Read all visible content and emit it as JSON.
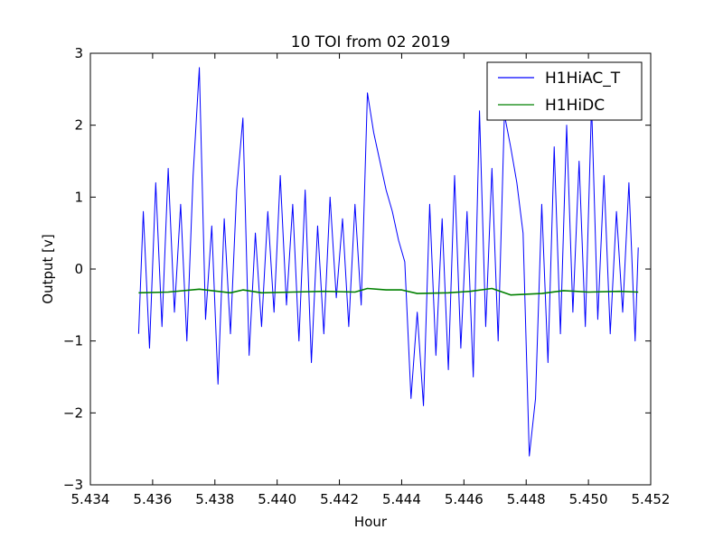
{
  "chart_data": {
    "type": "line",
    "title": "10 TOI from 02 2019",
    "xlabel": "Hour",
    "ylabel": "Output [v]",
    "xlim": [
      5.434,
      5.452
    ],
    "ylim": [
      -3,
      3
    ],
    "xticks": [
      5.434,
      5.436,
      5.438,
      5.44,
      5.442,
      5.444,
      5.446,
      5.448,
      5.45,
      5.452
    ],
    "xtick_labels": [
      "5.434",
      "5.436",
      "5.438",
      "5.440",
      "5.442",
      "5.444",
      "5.446",
      "5.448",
      "5.450",
      "5.452"
    ],
    "yticks": [
      -3,
      -2,
      -1,
      0,
      1,
      2,
      3
    ],
    "ytick_labels": [
      "−3",
      "−2",
      "−1",
      "0",
      "1",
      "2",
      "3"
    ],
    "grid": false,
    "legend_position": "top-right",
    "series": [
      {
        "name": "H1HiAC_T",
        "color": "#0000ff",
        "x": [
          5.43555,
          5.4357,
          5.4359,
          5.4361,
          5.4363,
          5.4365,
          5.4367,
          5.4369,
          5.4371,
          5.4373,
          5.4375,
          5.4377,
          5.4379,
          5.4381,
          5.4383,
          5.4385,
          5.4387,
          5.4389,
          5.4391,
          5.4393,
          5.4395,
          5.4397,
          5.4399,
          5.4401,
          5.4403,
          5.4405,
          5.4407,
          5.4409,
          5.4411,
          5.4413,
          5.4415,
          5.4417,
          5.4419,
          5.4421,
          5.4423,
          5.4425,
          5.4427,
          5.4429,
          5.4431,
          5.4433,
          5.4435,
          5.4437,
          5.4439,
          5.4441,
          5.4443,
          5.4445,
          5.4447,
          5.4449,
          5.4451,
          5.4453,
          5.4455,
          5.4457,
          5.4459,
          5.4461,
          5.4463,
          5.4465,
          5.4467,
          5.4469,
          5.4471,
          5.4473,
          5.4475,
          5.4477,
          5.4479,
          5.4481,
          5.4483,
          5.4485,
          5.4487,
          5.4489,
          5.4491,
          5.4493,
          5.4495,
          5.4497,
          5.4499,
          5.4501,
          5.4503,
          5.4505,
          5.4507,
          5.4509,
          5.4511,
          5.4513,
          5.4515,
          5.4516
        ],
        "values": [
          -0.9,
          0.8,
          -1.1,
          1.2,
          -0.8,
          1.4,
          -0.6,
          0.9,
          -1.0,
          1.3,
          2.8,
          -0.7,
          0.6,
          -1.6,
          0.7,
          -0.9,
          1.1,
          2.1,
          -1.2,
          0.5,
          -0.8,
          0.8,
          -0.6,
          1.3,
          -0.5,
          0.9,
          -1.0,
          1.1,
          -1.3,
          0.6,
          -0.9,
          1.0,
          -0.4,
          0.7,
          -0.8,
          0.9,
          -0.5,
          2.45,
          1.9,
          1.5,
          1.1,
          0.8,
          0.4,
          0.1,
          -1.8,
          -0.6,
          -1.9,
          0.9,
          -1.2,
          0.7,
          -1.4,
          1.3,
          -1.1,
          0.8,
          -1.5,
          2.2,
          -0.8,
          1.4,
          -1.0,
          2.15,
          1.7,
          1.2,
          0.5,
          -2.6,
          -1.8,
          0.9,
          -1.3,
          1.7,
          -0.9,
          2.0,
          -0.6,
          1.5,
          -0.8,
          2.3,
          -0.7,
          1.3,
          -0.9,
          0.8,
          -0.6,
          1.2,
          -1.0,
          0.3
        ]
      },
      {
        "name": "H1HiDC",
        "color": "#008000",
        "x": [
          5.43555,
          5.4365,
          5.4375,
          5.4385,
          5.4389,
          5.4395,
          5.4405,
          5.4415,
          5.4425,
          5.4429,
          5.4435,
          5.444,
          5.4445,
          5.4455,
          5.4462,
          5.4469,
          5.4475,
          5.4485,
          5.4492,
          5.45,
          5.451,
          5.4516
        ],
        "values": [
          -0.33,
          -0.32,
          -0.28,
          -0.33,
          -0.29,
          -0.33,
          -0.32,
          -0.31,
          -0.32,
          -0.27,
          -0.29,
          -0.29,
          -0.34,
          -0.33,
          -0.31,
          -0.27,
          -0.36,
          -0.34,
          -0.3,
          -0.32,
          -0.31,
          -0.32
        ]
      }
    ]
  }
}
